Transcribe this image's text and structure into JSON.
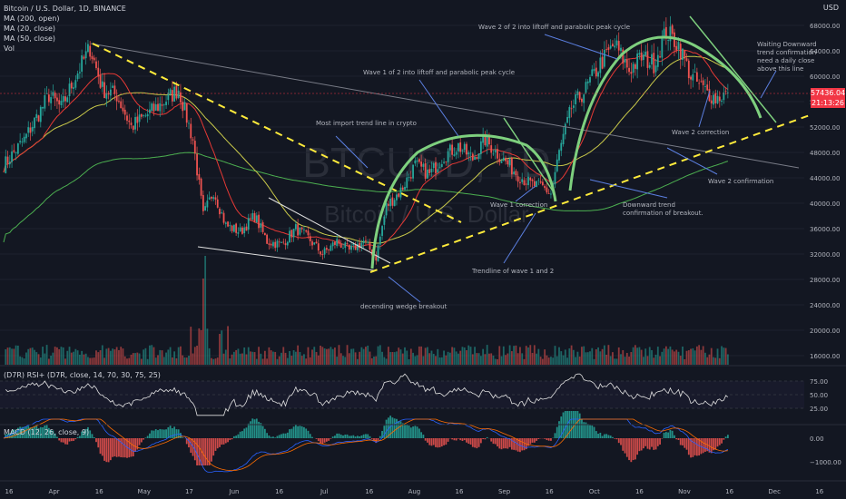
{
  "legend": {
    "symbol": "Bitcoin / U.S. Dollar, 1D, BINANCE",
    "ma200": "MA (200, open)",
    "ma20": "MA (20, close)",
    "ma50": "MA (50, close)",
    "vol": "Vol"
  },
  "currency": "USD",
  "last_price": {
    "value": "57436.04",
    "timer": "21:13:26"
  },
  "rsi_label": "(D7R) RSI+ (D7R, close, 14, 70, 30, 75, 25)",
  "macd_label": "MACD (12, 26, close, 9)",
  "watermark": {
    "line1": "BTCUSD, 1D",
    "line2": "Bitcoin / U.S. Dollar"
  },
  "annotations": {
    "wave2_cycle": "Wave 2 of 2 into liftoff and parabolic peak cycle",
    "wave1_cycle": "Wave 1 of 2 into liftoff and parabolic peak cycle",
    "important_trend": "Most import trend line in crypto",
    "wave1_correction": "Wave 1 correction",
    "downward_trend_1": "Downward trend",
    "downward_trend_2": "confirmation of breakout.",
    "trendline_waves": "Trendline of wave 1 and 2",
    "wedge_breakout": "decending wedge breakout",
    "wave2_correction": "Wave 2 correction",
    "wave2_confirmation": "Wave 2 confirmation",
    "waiting_1": "Waiting Downward",
    "waiting_2": "trend confirmation",
    "waiting_3": "need a daily close",
    "waiting_4": "above this line"
  },
  "colors": {
    "background": "#131722",
    "up": "#26a69a",
    "down": "#ef5350",
    "ma200": "#4caf50",
    "ma20": "#e53935",
    "ma50": "#c9c94a",
    "arc": "#7ed07e",
    "dashed": "#ffeb3b",
    "rsi_line": "#e0e0e0"
  },
  "chart_data": {
    "type": "candlestick",
    "x_labels": [
      "16",
      "Apr",
      "16",
      "May",
      "17",
      "Jun",
      "16",
      "Jul",
      "16",
      "Aug",
      "16",
      "Sep",
      "16",
      "Oct",
      "16",
      "Nov",
      "16",
      "Dec",
      "16"
    ],
    "y_ticks": [
      "68000.00",
      "64000.00",
      "60000.00",
      "56000.00",
      "52000.00",
      "48000.00",
      "44000.00",
      "40000.00",
      "36000.00",
      "32000.00",
      "28000.00",
      "24000.00",
      "20000.00",
      "16000.00"
    ],
    "y_tick_values": [
      68000,
      64000,
      60000,
      56000,
      52000,
      48000,
      44000,
      40000,
      36000,
      32000,
      28000,
      24000,
      20000,
      16000
    ],
    "rsi_ticks": [
      "75.00",
      "50.00",
      "25.00"
    ],
    "rsi_tick_values": [
      75,
      50,
      25
    ],
    "macd_ticks": [
      "0.00",
      "−1000.00"
    ],
    "macd_tick_values": [
      0,
      -1000
    ],
    "price_anchors": [
      [
        0,
        46000
      ],
      [
        10,
        50000
      ],
      [
        22,
        57000
      ],
      [
        28,
        55000
      ],
      [
        35,
        60000
      ],
      [
        42,
        64500
      ],
      [
        48,
        58000
      ],
      [
        55,
        57000
      ],
      [
        62,
        52000
      ],
      [
        70,
        54000
      ],
      [
        78,
        56000
      ],
      [
        85,
        58000
      ],
      [
        92,
        50000
      ],
      [
        97,
        38000
      ],
      [
        102,
        42000
      ],
      [
        108,
        36500
      ],
      [
        115,
        35500
      ],
      [
        122,
        38000
      ],
      [
        128,
        34000
      ],
      [
        135,
        33500
      ],
      [
        142,
        36000
      ],
      [
        148,
        34500
      ],
      [
        155,
        32000
      ],
      [
        162,
        34000
      ],
      [
        168,
        32500
      ],
      [
        175,
        34000
      ],
      [
        181,
        31500
      ],
      [
        186,
        39500
      ],
      [
        193,
        42000
      ],
      [
        200,
        46000
      ],
      [
        207,
        44500
      ],
      [
        214,
        47500
      ],
      [
        221,
        49000
      ],
      [
        228,
        47000
      ],
      [
        234,
        50000
      ],
      [
        238,
        48500
      ],
      [
        244,
        46500
      ],
      [
        250,
        44500
      ],
      [
        256,
        43000
      ],
      [
        262,
        42500
      ],
      [
        266,
        41500
      ],
      [
        270,
        48000
      ],
      [
        276,
        55000
      ],
      [
        283,
        58000
      ],
      [
        290,
        62000
      ],
      [
        297,
        65000
      ],
      [
        304,
        61000
      ],
      [
        310,
        63000
      ],
      [
        316,
        62000
      ],
      [
        322,
        67000
      ],
      [
        328,
        65000
      ],
      [
        334,
        60000
      ],
      [
        340,
        58000
      ],
      [
        346,
        56500
      ],
      [
        352,
        57400
      ]
    ],
    "last_price": 57436.04
  }
}
